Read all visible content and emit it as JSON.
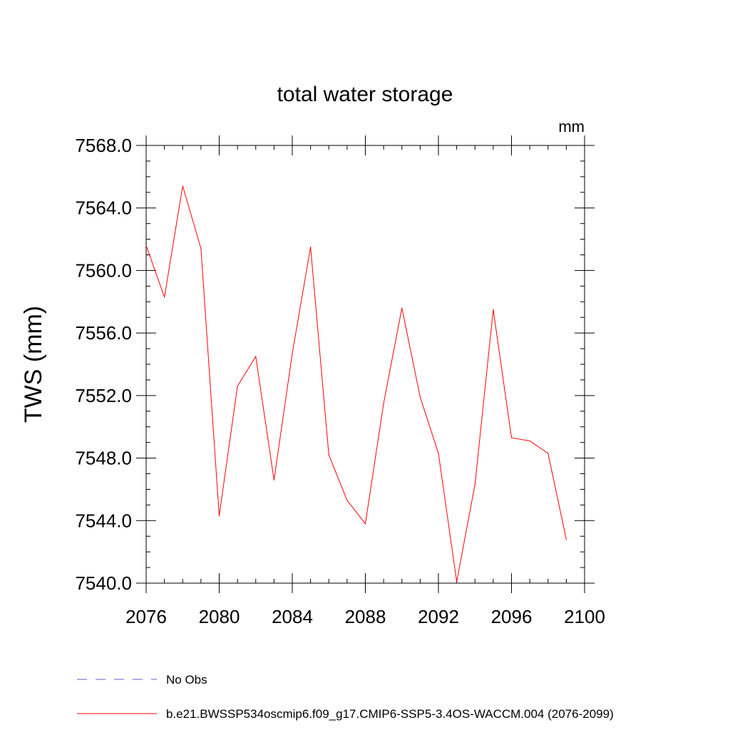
{
  "chart_data": {
    "type": "line",
    "title": "total water storage",
    "units_label": "mm",
    "xlabel": "",
    "ylabel": "TWS  (mm)",
    "xlim": [
      2076,
      2100
    ],
    "ylim": [
      7540,
      7568
    ],
    "x_ticks": [
      2076,
      2080,
      2084,
      2088,
      2092,
      2096,
      2100
    ],
    "y_ticks": [
      7540,
      7544,
      7548,
      7552,
      7556,
      7560,
      7564,
      7568
    ],
    "y_tick_labels": [
      "7540.0",
      "7544.0",
      "7548.0",
      "7552.0",
      "7556.0",
      "7560.0",
      "7564.0",
      "7568.0"
    ],
    "series": [
      {
        "name": "b.e21.BWSSP534oscmip6.f09_g17.CMIP6-SSP5-3.4OS-WACCM.004 (2076-2099)",
        "color": "#ff0000",
        "x": [
          2076,
          2077,
          2078,
          2079,
          2080,
          2081,
          2082,
          2083,
          2084,
          2085,
          2086,
          2087,
          2088,
          2089,
          2090,
          2091,
          2092,
          2093,
          2094,
          2095,
          2096,
          2097,
          2098,
          2099
        ],
        "values": [
          7561.6,
          7558.3,
          7565.4,
          7561.4,
          7544.3,
          7552.6,
          7554.5,
          7546.6,
          7554.7,
          7561.5,
          7548.2,
          7545.3,
          7543.8,
          7551.5,
          7557.6,
          7551.9,
          7548.3,
          7540.1,
          7546.3,
          7557.5,
          7549.3,
          7549.1,
          7548.3,
          7542.8
        ]
      }
    ],
    "legend": [
      {
        "label": "No Obs",
        "color": "#6a5acd",
        "style": "dashed"
      },
      {
        "label": "b.e21.BWSSP534oscmip6.f09_g17.CMIP6-SSP5-3.4OS-WACCM.004 (2076-2099)",
        "color": "#ff0000",
        "style": "solid"
      }
    ]
  }
}
